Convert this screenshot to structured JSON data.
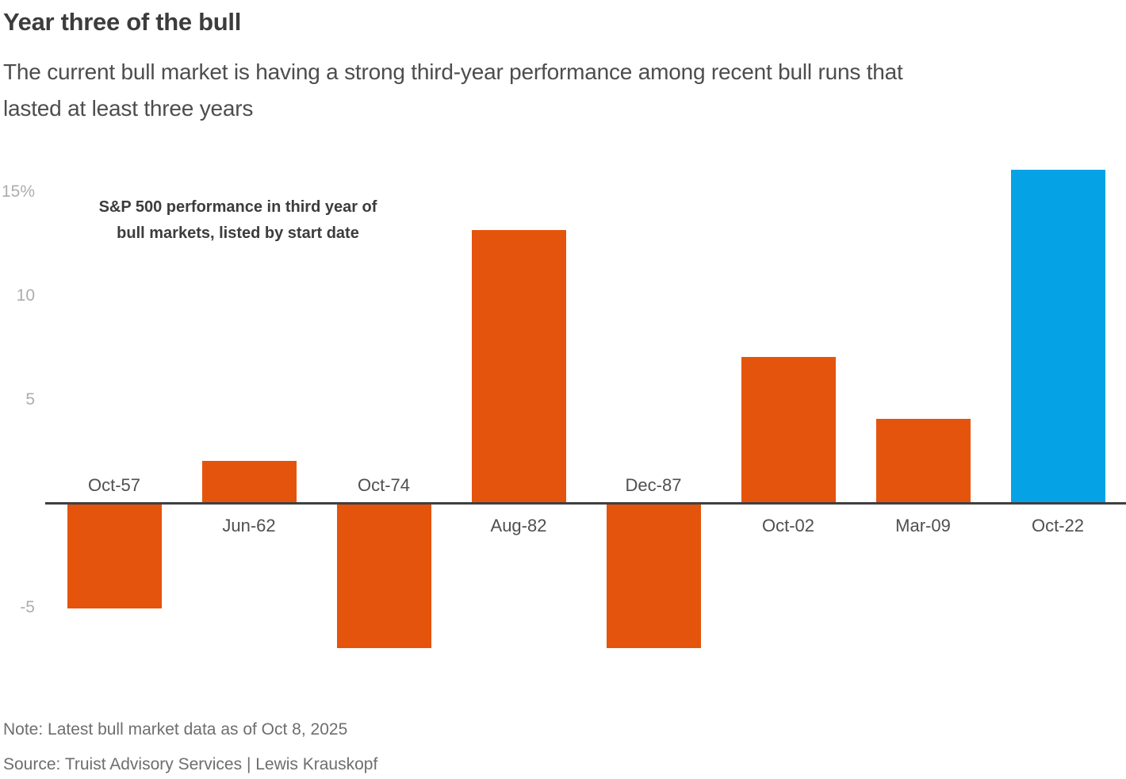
{
  "header": {
    "title": "Year three of the bull",
    "subtitle_line1": "The current bull market is having a strong third-year performance among recent bull runs that",
    "subtitle_line2": "lasted at least three years"
  },
  "chart": {
    "annotation_line1": "S&P 500 performance in third year of",
    "annotation_line2": "bull markets, listed by start date"
  },
  "chart_data": {
    "type": "bar",
    "title": "S&P 500 performance in third year of bull markets, listed by start date",
    "categories": [
      "Oct-57",
      "Jun-62",
      "Oct-74",
      "Aug-82",
      "Dec-87",
      "Oct-02",
      "Mar-09",
      "Oct-22"
    ],
    "values": [
      -5,
      2,
      -6.9,
      13.1,
      -6.9,
      7,
      4,
      16
    ],
    "highlight_category": "Oct-22",
    "yticks": [
      15,
      10,
      5,
      -5
    ],
    "ytick_labels": [
      "15%",
      "10",
      "5",
      "-5"
    ],
    "ylim": [
      -8.5,
      17
    ],
    "xlabel": "",
    "ylabel": "",
    "grid": false,
    "legend": false,
    "bar_color": "#E4540C",
    "highlight_color": "#05A3E6",
    "axis_color": "#3F3F3F"
  },
  "footer": {
    "note": "Note: Latest bull market data as of Oct 8, 2025",
    "source": "Source: Truist Advisory Services | Lewis Krauskopf"
  }
}
